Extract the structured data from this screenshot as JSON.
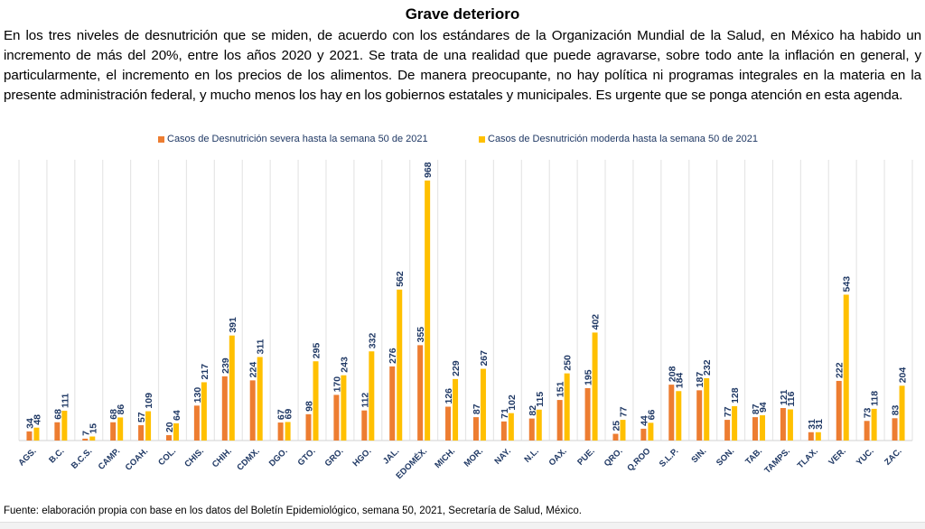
{
  "header": {
    "title": "Grave deterioro",
    "paragraph": "En los tres niveles de desnutrición que se miden, de acuerdo con los estándares de la Organización Mundial de la Salud, en México ha habido un incremento de más del 20%, entre los años 2020 y 2021. Se trata de una realidad que puede agravarse, sobre todo ante la inflación en general, y particularmente, el incremento en los precios de los alimentos. De manera preocupante, no hay política ni programas integrales en la materia en la presente administración federal, y mucho menos los hay en los gobiernos estatales y municipales. Es urgente que se ponga atención en esta agenda."
  },
  "footer": {
    "source": "Fuente: elaboración propia con base en los datos del Boletín Epidemiológico, semana 50, 2021, Secretaría de Salud, México."
  },
  "chart_data": {
    "type": "bar",
    "title": "",
    "xlabel": "",
    "ylabel": "",
    "ylim": [
      0,
      1000
    ],
    "grid": "vertical-category-separators",
    "legend_position": "top",
    "data_labels": true,
    "label_color": "#1f3864",
    "categories": [
      "AGS.",
      "B.C.",
      "B.C.S.",
      "CAMP.",
      "COAH.",
      "COL.",
      "CHIS.",
      "CHIH.",
      "CDMX.",
      "DGO.",
      "GTO.",
      "GRO.",
      "HGO.",
      "JAL.",
      "EDOMÉX.",
      "MICH.",
      "MOR.",
      "NAY.",
      "N.L.",
      "OAX.",
      "PUE.",
      "QRO.",
      "Q.ROO",
      "S.L.P.",
      "SIN.",
      "SON.",
      "TAB.",
      "TAMPS.",
      "TLAX.",
      "VER.",
      "YUC.",
      "ZAC."
    ],
    "series": [
      {
        "name": "Casos de Desnutrición severa hasta la semana 50 de 2021",
        "color": "#ed7d31",
        "values": [
          34,
          68,
          7,
          68,
          57,
          20,
          130,
          239,
          224,
          67,
          98,
          170,
          112,
          276,
          355,
          126,
          87,
          71,
          82,
          151,
          195,
          25,
          44,
          208,
          187,
          77,
          87,
          121,
          31,
          222,
          73,
          83
        ]
      },
      {
        "name": "Casos de Desnutrición moderda hasta la semana 50 de 2021",
        "color": "#ffc000",
        "values": [
          48,
          111,
          15,
          86,
          109,
          64,
          217,
          391,
          311,
          69,
          295,
          243,
          332,
          562,
          968,
          229,
          267,
          102,
          115,
          250,
          402,
          77,
          66,
          184,
          232,
          128,
          94,
          116,
          31,
          543,
          118,
          204
        ]
      }
    ]
  }
}
